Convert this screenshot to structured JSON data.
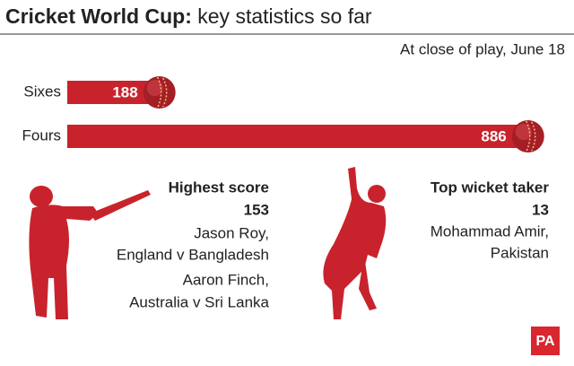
{
  "chart_data": {
    "type": "bar",
    "orientation": "horizontal",
    "title": [
      "Cricket World Cup:",
      "key statistics so far"
    ],
    "note": "At close of play, June 18",
    "categories": [
      "Sixes",
      "Fours"
    ],
    "values": [
      188,
      886
    ],
    "color": "#c8232c",
    "xlim": [
      0,
      900
    ]
  },
  "panels": [
    {
      "heading": "Highest score",
      "value": "153",
      "lines": [
        "Jason Roy,",
        "England v Bangladesh",
        "Aaron Finch,",
        "Australia v Sri Lanka"
      ]
    },
    {
      "heading": "Top wicket taker",
      "value": "13",
      "lines": [
        "Mohammad Amir,",
        "Pakistan"
      ]
    }
  ],
  "logo": "PA"
}
